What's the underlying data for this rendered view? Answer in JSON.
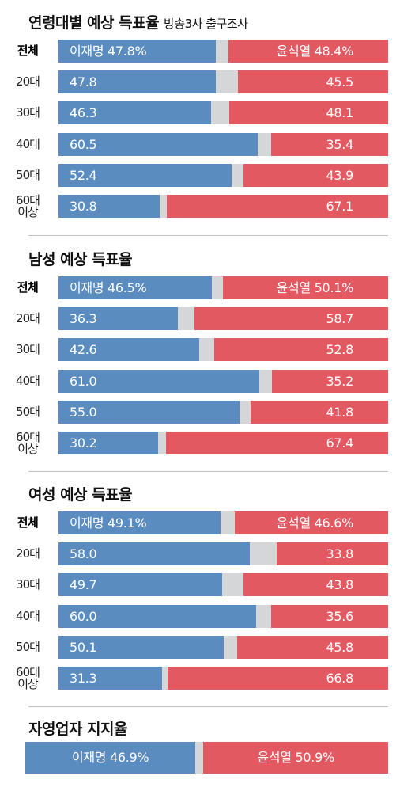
{
  "chart_data": [
    {
      "type": "bar",
      "orientation": "horizontal-stacked",
      "title": "연령대별 예상 득표율",
      "subtitle": "방송3사 출구조사",
      "colors": {
        "lee": "#5b8cc0",
        "yoon": "#e35962",
        "other": "#d5d6d8"
      },
      "rows": [
        {
          "label": "전체",
          "bold": true,
          "lee": 47.8,
          "yoon": 48.4,
          "lee_text": "이재명 47.8%",
          "yoon_text": "윤석열 48.4%"
        },
        {
          "label": "20대",
          "lee": 47.8,
          "yoon": 45.5,
          "lee_text": "47.8",
          "yoon_text": "45.5"
        },
        {
          "label": "30대",
          "lee": 46.3,
          "yoon": 48.1,
          "lee_text": "46.3",
          "yoon_text": "48.1"
        },
        {
          "label": "40대",
          "lee": 60.5,
          "yoon": 35.4,
          "lee_text": "60.5",
          "yoon_text": "35.4"
        },
        {
          "label": "50대",
          "lee": 52.4,
          "yoon": 43.9,
          "lee_text": "52.4",
          "yoon_text": "43.9"
        },
        {
          "label": "60대\n이상",
          "lee": 30.8,
          "yoon": 67.1,
          "lee_text": "30.8",
          "yoon_text": "67.1"
        }
      ]
    },
    {
      "type": "bar",
      "orientation": "horizontal-stacked",
      "title": "남성 예상 득표율",
      "subtitle": "",
      "colors": {
        "lee": "#5b8cc0",
        "yoon": "#e35962",
        "other": "#d5d6d8"
      },
      "rows": [
        {
          "label": "전체",
          "bold": true,
          "lee": 46.5,
          "yoon": 50.1,
          "lee_text": "이재명 46.5%",
          "yoon_text": "윤석열 50.1%"
        },
        {
          "label": "20대",
          "lee": 36.3,
          "yoon": 58.7,
          "lee_text": "36.3",
          "yoon_text": "58.7"
        },
        {
          "label": "30대",
          "lee": 42.6,
          "yoon": 52.8,
          "lee_text": "42.6",
          "yoon_text": "52.8"
        },
        {
          "label": "40대",
          "lee": 61.0,
          "yoon": 35.2,
          "lee_text": "61.0",
          "yoon_text": "35.2"
        },
        {
          "label": "50대",
          "lee": 55.0,
          "yoon": 41.8,
          "lee_text": "55.0",
          "yoon_text": "41.8"
        },
        {
          "label": "60대\n이상",
          "lee": 30.2,
          "yoon": 67.4,
          "lee_text": "30.2",
          "yoon_text": "67.4"
        }
      ]
    },
    {
      "type": "bar",
      "orientation": "horizontal-stacked",
      "title": "여성 예상 득표율",
      "subtitle": "",
      "colors": {
        "lee": "#5b8cc0",
        "yoon": "#e35962",
        "other": "#d5d6d8"
      },
      "rows": [
        {
          "label": "전체",
          "bold": true,
          "lee": 49.1,
          "yoon": 46.6,
          "lee_text": "이재명 49.1%",
          "yoon_text": "윤석열 46.6%"
        },
        {
          "label": "20대",
          "lee": 58.0,
          "yoon": 33.8,
          "lee_text": "58.0",
          "yoon_text": "33.8"
        },
        {
          "label": "30대",
          "lee": 49.7,
          "yoon": 43.8,
          "lee_text": "49.7",
          "yoon_text": "43.8"
        },
        {
          "label": "40대",
          "lee": 60.0,
          "yoon": 35.6,
          "lee_text": "60.0",
          "yoon_text": "35.6"
        },
        {
          "label": "50대",
          "lee": 50.1,
          "yoon": 45.8,
          "lee_text": "50.1",
          "yoon_text": "45.8"
        },
        {
          "label": "60대\n이상",
          "lee": 31.3,
          "yoon": 66.8,
          "lee_text": "31.3",
          "yoon_text": "66.8"
        }
      ]
    },
    {
      "type": "bar",
      "orientation": "horizontal-stacked",
      "title": "자영업자 지지율",
      "subtitle": "",
      "colors": {
        "lee": "#5b8cc0",
        "yoon": "#e35962",
        "other": "#d5d6d8"
      },
      "rows": [
        {
          "label": "",
          "lee": 46.9,
          "yoon": 50.9,
          "lee_text": "이재명 46.9%",
          "yoon_text": "윤석열 50.9%"
        }
      ]
    }
  ]
}
